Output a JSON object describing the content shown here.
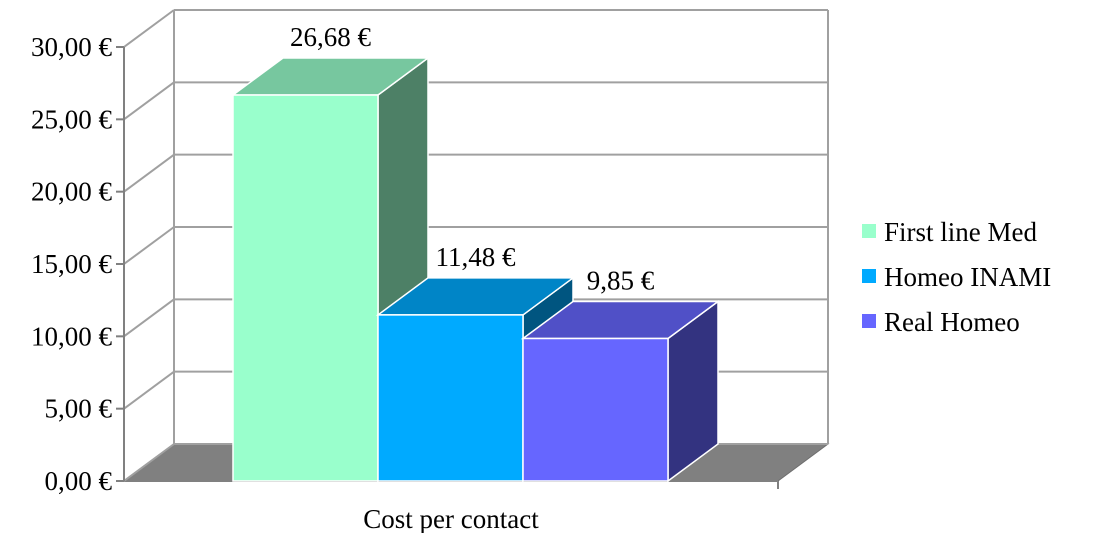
{
  "chart_data": {
    "type": "bar",
    "style": "3d-clustered-column",
    "categories": [
      "Cost per contact"
    ],
    "series": [
      {
        "name": "First line Med",
        "values": [
          26.68
        ],
        "label": "26,68 €",
        "color": "#99ffcc"
      },
      {
        "name": "Homeo INAMI",
        "values": [
          11.48
        ],
        "label": "11,48 €",
        "color": "#00aaff"
      },
      {
        "name": "Real Homeo",
        "values": [
          9.85
        ],
        "label": "9,85 €",
        "color": "#6666ff"
      }
    ],
    "ylim": [
      0,
      30
    ],
    "yticks": [
      {
        "value": 0,
        "label": "0,00 €"
      },
      {
        "value": 5,
        "label": "5,00 €"
      },
      {
        "value": 10,
        "label": "10,00 €"
      },
      {
        "value": 15,
        "label": "15,00 €"
      },
      {
        "value": 20,
        "label": "20,00 €"
      },
      {
        "value": 25,
        "label": "25,00 €"
      },
      {
        "value": 30,
        "label": "30,00 €"
      }
    ],
    "grid": true,
    "legend_position": "right"
  }
}
